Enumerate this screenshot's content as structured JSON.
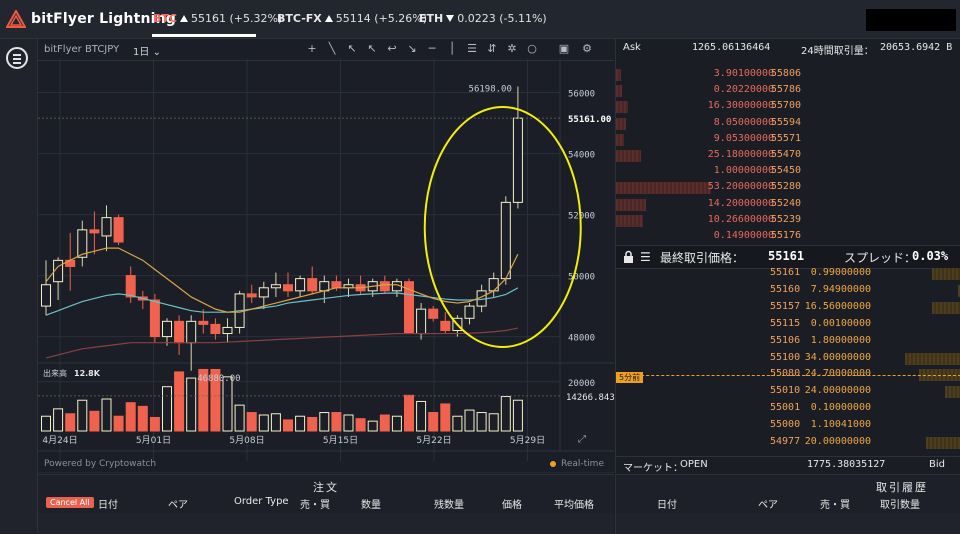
{
  "app": {
    "logo_text": "bitFlyer Lightning"
  },
  "tickers": [
    {
      "symbol": "BTC",
      "direction": "up",
      "value": "55161 (+5.32%)"
    },
    {
      "symbol": "BTC-FX",
      "direction": "up",
      "value": "55114 (+5.26%)"
    },
    {
      "symbol": "ETH",
      "direction": "down",
      "value": "0.0223 (-5.11%)"
    }
  ],
  "chart_toolbar": {
    "symbol": "bitFlyer BTCJPY",
    "timeframe": "1日"
  },
  "chart_data": {
    "type": "candlestick",
    "title": "",
    "x_labels": [
      "4月24日",
      "5月01日",
      "5月08日",
      "5月15日",
      "5月22日",
      "5月29日"
    ],
    "y_ticks": [
      48000,
      50000,
      52000,
      54000,
      56000
    ],
    "ylim": [
      47200,
      57100
    ],
    "last_price_label": "55161.00",
    "high_label": "56198.00",
    "low_label": "46880.00",
    "candles": [
      {
        "o": 49000,
        "h": 50500,
        "l": 48700,
        "c": 49700
      },
      {
        "o": 49800,
        "h": 50600,
        "l": 49200,
        "c": 50500
      },
      {
        "o": 50500,
        "h": 51400,
        "l": 49500,
        "c": 50300
      },
      {
        "o": 50600,
        "h": 51800,
        "l": 50300,
        "c": 51500
      },
      {
        "o": 51500,
        "h": 52100,
        "l": 50700,
        "c": 51400
      },
      {
        "o": 51300,
        "h": 52300,
        "l": 50800,
        "c": 51900
      },
      {
        "o": 51900,
        "h": 52000,
        "l": 51000,
        "c": 51100
      },
      {
        "o": 50000,
        "h": 50300,
        "l": 49100,
        "c": 49300
      },
      {
        "o": 49300,
        "h": 49500,
        "l": 48900,
        "c": 49200
      },
      {
        "o": 49200,
        "h": 49400,
        "l": 47800,
        "c": 48000
      },
      {
        "o": 48000,
        "h": 48600,
        "l": 47700,
        "c": 48500
      },
      {
        "o": 48500,
        "h": 48700,
        "l": 47400,
        "c": 47800
      },
      {
        "o": 47800,
        "h": 48700,
        "l": 46880,
        "c": 48500
      },
      {
        "o": 48500,
        "h": 48900,
        "l": 48100,
        "c": 48400
      },
      {
        "o": 48400,
        "h": 48600,
        "l": 47900,
        "c": 48100
      },
      {
        "o": 48100,
        "h": 48600,
        "l": 47800,
        "c": 48300
      },
      {
        "o": 48300,
        "h": 49500,
        "l": 48100,
        "c": 49400
      },
      {
        "o": 49400,
        "h": 49700,
        "l": 49100,
        "c": 49300
      },
      {
        "o": 49300,
        "h": 49800,
        "l": 48900,
        "c": 49600
      },
      {
        "o": 49600,
        "h": 50100,
        "l": 49300,
        "c": 49700
      },
      {
        "o": 49700,
        "h": 50100,
        "l": 49300,
        "c": 49500
      },
      {
        "o": 49500,
        "h": 50000,
        "l": 49300,
        "c": 49900
      },
      {
        "o": 49900,
        "h": 50300,
        "l": 49400,
        "c": 49500
      },
      {
        "o": 49500,
        "h": 50000,
        "l": 49100,
        "c": 49800
      },
      {
        "o": 49800,
        "h": 50000,
        "l": 49500,
        "c": 49600
      },
      {
        "o": 49600,
        "h": 49900,
        "l": 49300,
        "c": 49700
      },
      {
        "o": 49700,
        "h": 50000,
        "l": 49400,
        "c": 49500
      },
      {
        "o": 49500,
        "h": 49900,
        "l": 49300,
        "c": 49800
      },
      {
        "o": 49800,
        "h": 50000,
        "l": 49400,
        "c": 49500
      },
      {
        "o": 49500,
        "h": 49900,
        "l": 49300,
        "c": 49800
      },
      {
        "o": 49800,
        "h": 49900,
        "l": 48100,
        "c": 48100
      },
      {
        "o": 48100,
        "h": 49100,
        "l": 47900,
        "c": 48900
      },
      {
        "o": 48900,
        "h": 49000,
        "l": 48500,
        "c": 48600
      },
      {
        "o": 48500,
        "h": 48800,
        "l": 48100,
        "c": 48200
      },
      {
        "o": 48200,
        "h": 48700,
        "l": 48000,
        "c": 48600
      },
      {
        "o": 48600,
        "h": 49100,
        "l": 48400,
        "c": 49000
      },
      {
        "o": 49000,
        "h": 49700,
        "l": 48800,
        "c": 49500
      },
      {
        "o": 49500,
        "h": 50100,
        "l": 49300,
        "c": 49900
      },
      {
        "o": 49900,
        "h": 52600,
        "l": 49700,
        "c": 52400
      },
      {
        "o": 52400,
        "h": 56198,
        "l": 52200,
        "c": 55161
      }
    ],
    "ma_fast": [
      49800,
      50300,
      50500,
      50700,
      50800,
      50900,
      50900,
      50700,
      50500,
      50200,
      49900,
      49600,
      49300,
      49100,
      48900,
      48800,
      48800,
      48900,
      49000,
      49100,
      49200,
      49300,
      49400,
      49500,
      49600,
      49600,
      49600,
      49650,
      49700,
      49700,
      49550,
      49400,
      49250,
      49150,
      49100,
      49150,
      49300,
      49500,
      49900,
      50700
    ],
    "ma_slow": [
      48700,
      48850,
      49000,
      49150,
      49250,
      49350,
      49400,
      49350,
      49250,
      49150,
      49050,
      48950,
      48850,
      48800,
      48800,
      48800,
      48850,
      48900,
      48950,
      49000,
      49100,
      49150,
      49200,
      49250,
      49300,
      49350,
      49380,
      49400,
      49420,
      49430,
      49380,
      49330,
      49280,
      49230,
      49200,
      49200,
      49220,
      49280,
      49380,
      49600
    ],
    "ma_long": [
      47300,
      47400,
      47500,
      47600,
      47650,
      47700,
      47750,
      47800,
      47800,
      47800,
      47800,
      47800,
      47800,
      47800,
      47800,
      47820,
      47840,
      47860,
      47880,
      47900,
      47920,
      47940,
      47960,
      47980,
      48000,
      48020,
      48040,
      48060,
      48080,
      48100,
      48100,
      48100,
      48100,
      48100,
      48100,
      48110,
      48130,
      48160,
      48200,
      48280
    ],
    "volume_label": "出来高",
    "volume_value": "12.8K",
    "volume_ticks": [
      20000
    ],
    "volume_last_label": "14266.843",
    "volume_max": 26000,
    "volumes": [
      6000,
      9000,
      7000,
      12500,
      8000,
      13000,
      6000,
      11500,
      10000,
      5500,
      18000,
      24000,
      21500,
      25000,
      25000,
      22000,
      10500,
      7500,
      6500,
      7000,
      4500,
      6000,
      5500,
      7500,
      7500,
      6500,
      5000,
      4000,
      6500,
      6000,
      14500,
      12000,
      7500,
      11000,
      6000,
      8500,
      7500,
      7000,
      14000,
      12500
    ]
  },
  "chart_footer": {
    "powered": "Powered by Cryptowatch",
    "realtime": "Real-time"
  },
  "orderbook": {
    "ask_label": "Ask",
    "ask_total": "1265.06136464",
    "volume24_label": "24時間取引量：",
    "volume24_value": "20653.6942 B",
    "asks": [
      {
        "size": "3.90100000",
        "price": "55806",
        "depth": 0.05
      },
      {
        "size": "0.20220000",
        "price": "55786",
        "depth": 0.06
      },
      {
        "size": "16.30000000",
        "price": "55700",
        "depth": 0.12
      },
      {
        "size": "8.05000000",
        "price": "55594",
        "depth": 0.1
      },
      {
        "size": "9.05300000",
        "price": "55571",
        "depth": 0.08
      },
      {
        "size": "25.18000000",
        "price": "55470",
        "depth": 0.25
      },
      {
        "size": "1.00000000",
        "price": "55450",
        "depth": 0.0
      },
      {
        "size": "53.20000000",
        "price": "55280",
        "depth": 0.95
      },
      {
        "size": "14.20000000",
        "price": "55240",
        "depth": 0.3
      },
      {
        "size": "10.26600000",
        "price": "55239",
        "depth": 0.27
      },
      {
        "size": "0.14900000",
        "price": "55176",
        "depth": 0.0
      }
    ],
    "last_label": "最終取引価格：",
    "last_price": "55161",
    "spread_label": "スプレッド：",
    "spread_value": "0.03%",
    "bids": [
      {
        "price": "55161",
        "size": "0.99000000",
        "depth": 0.18
      },
      {
        "price": "55160",
        "size": "7.94900000",
        "depth": 0.02
      },
      {
        "price": "55157",
        "size": "16.56000000",
        "depth": 0.18
      },
      {
        "price": "55115",
        "size": "0.00100000",
        "depth": 0.0
      },
      {
        "price": "55106",
        "size": "1.80000000",
        "depth": 0.0
      },
      {
        "price": "55100",
        "size": "34.00000000",
        "depth": 0.35
      },
      {
        "price": "55080",
        "size": "24.70000000",
        "depth": 0.26
      },
      {
        "price": "55010",
        "size": "24.00000000",
        "depth": 0.1
      },
      {
        "price": "55001",
        "size": "0.10000000",
        "depth": 0.0
      },
      {
        "price": "55000",
        "size": "1.10041000",
        "depth": 0.0
      },
      {
        "price": "54977",
        "size": "20.00000000",
        "depth": 0.22
      }
    ],
    "time_marker": "5分前",
    "market_label": "マーケット：",
    "market_status": "OPEN",
    "bid_total": "1775.38035127",
    "bid_label": "Bid"
  },
  "orders": {
    "title": "注文",
    "cancel_all": "Cancel All",
    "columns": [
      "日付",
      "ペア",
      "Order Type",
      "売・買",
      "数量",
      "残数量",
      "価格",
      "平均価格"
    ]
  },
  "history": {
    "title": "取引履歴",
    "columns": [
      "日付",
      "ペア",
      "売・買",
      "取引数量"
    ]
  },
  "colors": {
    "up": "#f4f1c9",
    "down": "#f0624d",
    "ma_fast": "#d8a445",
    "ma_slow": "#6cc0c9",
    "ma_long": "#8a4040",
    "highlight": "#f4f000"
  }
}
